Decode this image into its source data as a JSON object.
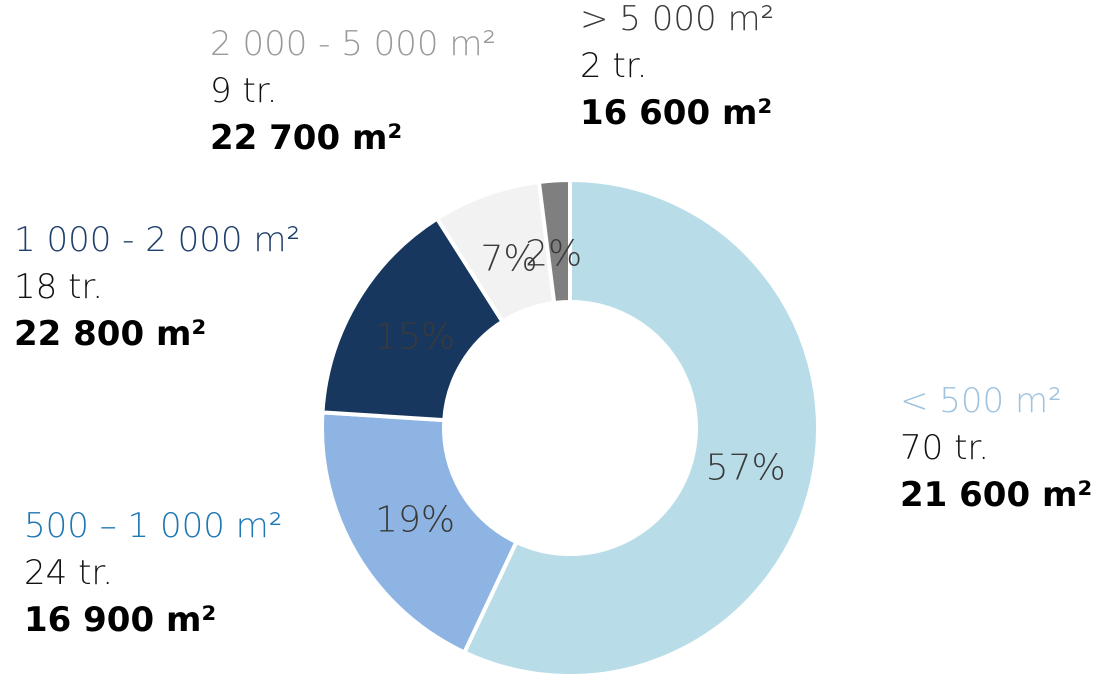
{
  "chart_data": {
    "type": "pie",
    "title": "",
    "categories": [
      "< 500 m²",
      "500 – 1 000 m²",
      "1 000 - 2 000 m²",
      "2 000 - 5 000 m²",
      "> 5 000 m²"
    ],
    "values": [
      57,
      19,
      15,
      7,
      2
    ],
    "slices": [
      {
        "label": "< 500 m²",
        "percent": 57,
        "percent_label": "57%",
        "count": "70 tr.",
        "area": "21 600 m²",
        "color": "#b8dde8",
        "label_color": "#9dc3e0"
      },
      {
        "label": "500 – 1 000 m²",
        "percent": 19,
        "percent_label": "19%",
        "count": "24 tr.",
        "area": "16 900 m²",
        "color": "#8eb4e3",
        "label_color": "#1f77b4"
      },
      {
        "label": "1 000 - 2 000 m²",
        "percent": 15,
        "percent_label": "15%",
        "count": "18 tr.",
        "area": "22 800 m²",
        "color": "#17375e",
        "label_color": "#1f3f6b"
      },
      {
        "label": "2 000 - 5 000 m²",
        "percent": 7,
        "percent_label": "7%",
        "count": "9 tr.",
        "area": "22 700 m²",
        "color": "#f2f2f2",
        "label_color": "#9a9a9a"
      },
      {
        "label": "> 5 000 m²",
        "percent": 2,
        "percent_label": "2%",
        "count": "2 tr.",
        "area": "16 600 m²",
        "color": "#7f7f7f",
        "label_color": "#3a3a3a"
      }
    ],
    "style": "donut",
    "legend": "none"
  }
}
